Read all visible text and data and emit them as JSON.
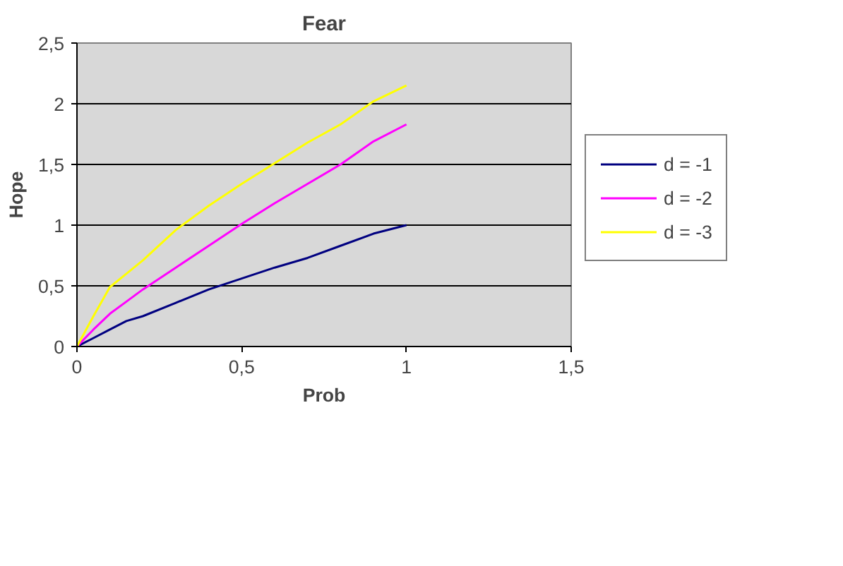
{
  "chart_data": {
    "type": "line",
    "title": "Fear",
    "xlabel": "Prob",
    "ylabel": "Hope",
    "xlim": [
      0,
      1.5
    ],
    "xticks": [
      0,
      {
        "value": 0.5,
        "label": "0,5"
      },
      1,
      {
        "value": 1.5,
        "label": "1,5"
      }
    ],
    "ylim": [
      0,
      2.5
    ],
    "yticks": [
      0,
      {
        "value": 0.5,
        "label": "0,5"
      },
      1,
      {
        "value": 1.5,
        "label": "1,5"
      },
      2,
      {
        "value": 2.5,
        "label": "2,5"
      }
    ],
    "grid": "y",
    "legend": "right",
    "marker": "none",
    "line_style": "solid",
    "x": [
      0,
      0.05,
      0.1,
      0.15,
      0.2,
      0.3,
      0.4,
      0.5,
      0.6,
      0.7,
      0.8,
      0.9,
      1
    ],
    "series": [
      {
        "name": "d = -1",
        "color": "#000080",
        "values": [
          0,
          0.07,
          0.14,
          0.21,
          0.25,
          0.36,
          0.47,
          0.56,
          0.65,
          0.73,
          0.83,
          0.93,
          1
        ]
      },
      {
        "name": "d = -2",
        "color": "#ff00ff",
        "values": [
          0,
          0.14,
          0.27,
          0.37,
          0.47,
          0.65,
          0.83,
          1.01,
          1.18,
          1.34,
          1.5,
          1.69,
          1.83
        ]
      },
      {
        "name": "d = -3",
        "color": "#ffff00",
        "values": [
          0,
          0.25,
          0.49,
          0.6,
          0.71,
          0.96,
          1.16,
          1.34,
          1.51,
          1.68,
          1.83,
          2.02,
          2.15
        ]
      }
    ]
  }
}
